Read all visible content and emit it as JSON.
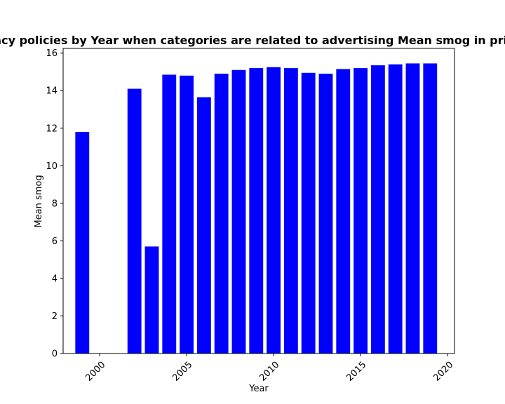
{
  "chart_data": {
    "type": "bar",
    "title": "Mean smog in privacy policies by Year when categories are related to advertising Mean smog in privacy policies by Year",
    "xlabel": "Year",
    "ylabel": "Mean smog",
    "x": [
      1999,
      2002,
      2003,
      2004,
      2005,
      2006,
      2007,
      2008,
      2009,
      2010,
      2011,
      2012,
      2013,
      2014,
      2015,
      2016,
      2017,
      2018,
      2019
    ],
    "values": [
      11.8,
      14.1,
      5.7,
      14.85,
      14.8,
      13.65,
      14.9,
      15.1,
      15.2,
      15.25,
      15.2,
      14.95,
      14.9,
      15.15,
      15.2,
      15.35,
      15.4,
      15.45,
      15.45
    ],
    "xlim": [
      1997.9,
      2020.4
    ],
    "ylim": [
      0,
      16.25
    ],
    "xticks": [
      2000,
      2005,
      2010,
      2015,
      2020
    ],
    "yticks": [
      0,
      2,
      4,
      6,
      8,
      10,
      12,
      14,
      16
    ],
    "bar_color": "#0000ff",
    "grid": false,
    "legend": "none"
  }
}
